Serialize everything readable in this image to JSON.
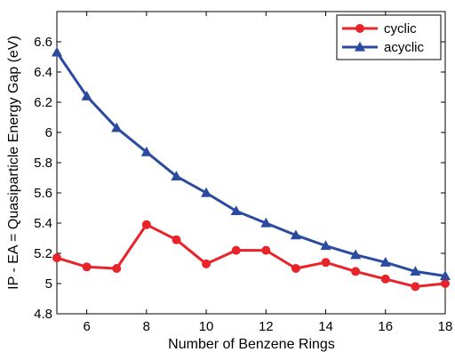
{
  "chart_data": {
    "type": "line",
    "xlabel": "Number of Benzene Rings",
    "ylabel": "IP - EA = Quasiparticle Energy Gap (eV)",
    "xlim": [
      5,
      18
    ],
    "ylim": [
      4.8,
      6.8
    ],
    "x_ticks": [
      "6",
      "8",
      "10",
      "12",
      "14",
      "16",
      "18"
    ],
    "y_ticks": [
      "4.8",
      "5",
      "5.2",
      "5.4",
      "5.6",
      "5.8",
      "6",
      "6.2",
      "6.4",
      "6.6"
    ],
    "grid": false,
    "legend_position": "top-right",
    "x": [
      5,
      6,
      7,
      8,
      9,
      10,
      11,
      12,
      13,
      14,
      15,
      16,
      17,
      18
    ],
    "series": [
      {
        "name": "cyclic",
        "color": "#e8232a",
        "marker": "circle",
        "values": [
          5.17,
          5.11,
          5.1,
          5.39,
          5.29,
          5.13,
          5.22,
          5.22,
          5.1,
          5.14,
          5.08,
          5.03,
          4.98,
          5.0
        ]
      },
      {
        "name": "acyclic",
        "color": "#2b4ba0",
        "marker": "triangle",
        "values": [
          6.53,
          6.24,
          6.03,
          5.87,
          5.71,
          5.6,
          5.48,
          5.4,
          5.32,
          5.25,
          5.19,
          5.14,
          5.08,
          5.05
        ]
      }
    ]
  }
}
